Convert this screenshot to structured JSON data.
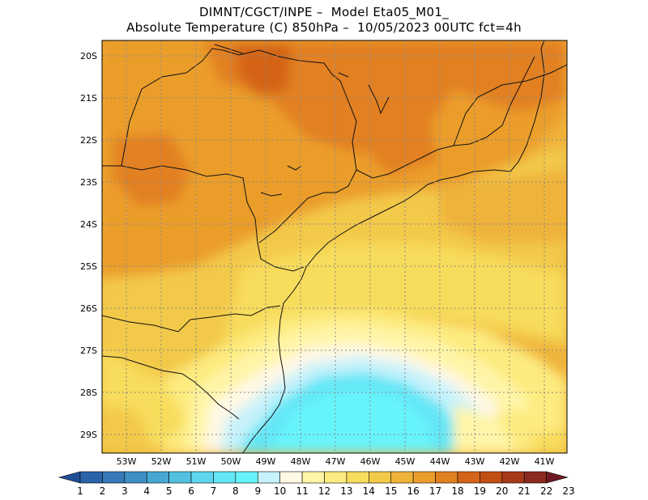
{
  "header": {
    "line1": "DIMNT/CGCT/INPE –  Model Eta05_M01_",
    "line2": "Absolute Temperature (C) 850hPa –  10/05/2023 00UTC fct=4h"
  },
  "map": {
    "lat_labels": [
      "20S",
      "21S",
      "22S",
      "23S",
      "24S",
      "25S",
      "26S",
      "27S",
      "28S",
      "29S"
    ],
    "lon_labels": [
      "53W",
      "52W",
      "51W",
      "50W",
      "49W",
      "48W",
      "47W",
      "46W",
      "45W",
      "44W",
      "43W",
      "42W",
      "41W"
    ],
    "grid_style": "dotted",
    "field": "temperature 850hPa",
    "coastline": "South/Southeast Brazil"
  },
  "colorbar": {
    "values": [
      "1",
      "2",
      "3",
      "4",
      "5",
      "6",
      "7",
      "8",
      "9",
      "10",
      "11",
      "12",
      "13",
      "14",
      "15",
      "16",
      "17",
      "18",
      "19",
      "20",
      "21",
      "22",
      "23"
    ],
    "colors": [
      "#1f4e96",
      "#2a62a8",
      "#3579b8",
      "#3d8fc4",
      "#46a8d2",
      "#52c1e0",
      "#5ed6ee",
      "#63e6f6",
      "#66f4fb",
      "#c6f2fb",
      "#fff8e6",
      "#fff5a8",
      "#fdeb7f",
      "#f8dc5c",
      "#f3c94a",
      "#efb33a",
      "#eb9d2c",
      "#e28020",
      "#d46418",
      "#c24e14",
      "#a8391a",
      "#8a2a1e",
      "#6e1a22"
    ]
  }
}
